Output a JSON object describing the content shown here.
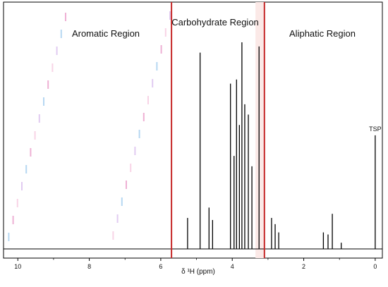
{
  "chart_data": {
    "type": "line",
    "title": "",
    "xlabel": "δ ¹H (ppm)",
    "ylabel": "",
    "x_reversed": true,
    "xlim": [
      10.4,
      -0.2
    ],
    "ylim": [
      0,
      100
    ],
    "x_ticks": [
      10,
      8,
      6,
      4,
      2,
      0
    ],
    "x_tick_labels": [
      "10",
      "8",
      "6",
      "4",
      "2",
      "0"
    ],
    "regions": [
      {
        "label": "Aromatic Region",
        "from": 10.4,
        "to": 5.7
      },
      {
        "label": "Carbohydrate Region",
        "from": 5.7,
        "to": 3.1
      },
      {
        "label": "Aliphatic Region",
        "from": 3.1,
        "to": -0.2
      }
    ],
    "region_boundaries_ppm": [
      5.7,
      3.1
    ],
    "reference_peak": {
      "label": "TSP",
      "ppm": 0.0,
      "height": 55
    },
    "peaks": [
      {
        "ppm": 5.25,
        "height": 15
      },
      {
        "ppm": 4.9,
        "height": 95
      },
      {
        "ppm": 4.65,
        "height": 20
      },
      {
        "ppm": 4.55,
        "height": 14
      },
      {
        "ppm": 4.05,
        "height": 80
      },
      {
        "ppm": 3.95,
        "height": 45
      },
      {
        "ppm": 3.88,
        "height": 82
      },
      {
        "ppm": 3.8,
        "height": 60
      },
      {
        "ppm": 3.73,
        "height": 100
      },
      {
        "ppm": 3.65,
        "height": 70
      },
      {
        "ppm": 3.55,
        "height": 65
      },
      {
        "ppm": 3.45,
        "height": 40
      },
      {
        "ppm": 3.25,
        "height": 98
      },
      {
        "ppm": 2.9,
        "height": 15
      },
      {
        "ppm": 2.8,
        "height": 12
      },
      {
        "ppm": 2.7,
        "height": 8
      },
      {
        "ppm": 1.45,
        "height": 8
      },
      {
        "ppm": 1.32,
        "height": 7
      },
      {
        "ppm": 1.2,
        "height": 17
      },
      {
        "ppm": 0.95,
        "height": 3
      }
    ],
    "colors": {
      "spectrum": "#000000",
      "boundary": "#c62828",
      "boundary_fill": "#fbe9e7"
    }
  }
}
